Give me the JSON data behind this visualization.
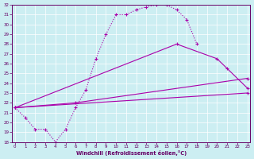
{
  "background_color": "#cceef2",
  "line_color": "#aa00aa",
  "xlabel": "Windchill (Refroidissement éolien,°C)",
  "xlim_min": -0.3,
  "xlim_max": 23.3,
  "ylim_min": 18,
  "ylim_max": 32,
  "xticks": [
    0,
    1,
    2,
    3,
    4,
    5,
    6,
    7,
    8,
    9,
    10,
    11,
    12,
    13,
    14,
    15,
    16,
    17,
    18,
    19,
    20,
    21,
    22,
    23
  ],
  "yticks": [
    18,
    19,
    20,
    21,
    22,
    23,
    24,
    25,
    26,
    27,
    28,
    29,
    30,
    31,
    32
  ],
  "line1_x": [
    0,
    1,
    2,
    3,
    4,
    5,
    6,
    7,
    8,
    9,
    10,
    11,
    12,
    13,
    14,
    15,
    16,
    17,
    18
  ],
  "line1_y": [
    21.5,
    20.5,
    19.3,
    19.3,
    18.0,
    19.3,
    21.5,
    23.3,
    26.5,
    29.0,
    31.0,
    31.0,
    31.5,
    31.8,
    32.0,
    32.0,
    31.5,
    30.5,
    28.0
  ],
  "line2_x": [
    0,
    16,
    20,
    21,
    23
  ],
  "line2_y": [
    21.5,
    28.0,
    26.5,
    25.5,
    23.5
  ],
  "line3_x": [
    0,
    6,
    23
  ],
  "line3_y": [
    21.5,
    22.0,
    24.5
  ],
  "line4_x": [
    0,
    23
  ],
  "line4_y": [
    21.5,
    23.0
  ]
}
